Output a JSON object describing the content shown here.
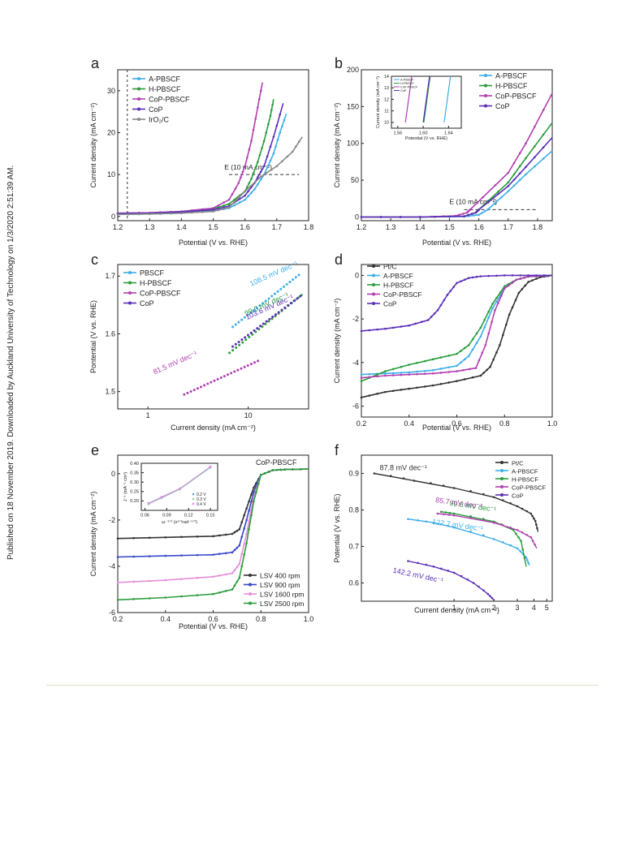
{
  "side_note": "Published on 18 November 2019. Downloaded by Auckland University of Technology on 1/3/2020 2:51:39 AM.",
  "colors": {
    "A-PBSCF": "#3daee9",
    "H-PBSCF": "#2a9c3c",
    "CoP-PBSCF": "#b03fb0",
    "CoP": "#5b2fb8",
    "IrO2/C": "#888888",
    "Pt/C": "#333333"
  },
  "chart_data": [
    {
      "panel": "a",
      "type": "line",
      "xlabel": "Potential (V vs. RHE)",
      "ylabel": "Current density (mA cm⁻²)",
      "xlim": [
        1.2,
        1.8
      ],
      "ylim": [
        -1,
        35
      ],
      "xticks": [
        "1.2",
        "1.3",
        "1.4",
        "1.5",
        "1.6",
        "1.7",
        "1.8"
      ],
      "xtick_values": [
        1.2,
        1.3,
        1.4,
        1.5,
        1.6,
        1.7,
        1.8
      ],
      "yticks": [
        "0",
        "10",
        "20",
        "30"
      ],
      "ytick_values": [
        0,
        10,
        20,
        30
      ],
      "annotation": "E (10 mA cm⁻²)",
      "legend": "top-left",
      "series": [
        {
          "name": "A-PBSCF",
          "x": [
            1.2,
            1.3,
            1.4,
            1.5,
            1.55,
            1.6,
            1.63,
            1.66,
            1.69,
            1.71,
            1.73
          ],
          "y": [
            0.5,
            0.6,
            0.8,
            1.3,
            2,
            4,
            6.5,
            10,
            15,
            20,
            24.5
          ]
        },
        {
          "name": "H-PBSCF",
          "x": [
            1.2,
            1.3,
            1.4,
            1.5,
            1.55,
            1.6,
            1.62,
            1.64,
            1.66,
            1.68,
            1.69
          ],
          "y": [
            0.6,
            0.7,
            1,
            1.8,
            3,
            6,
            9,
            13,
            18,
            24,
            28
          ]
        },
        {
          "name": "CoP-PBSCF",
          "x": [
            1.2,
            1.3,
            1.4,
            1.5,
            1.55,
            1.58,
            1.6,
            1.62,
            1.64,
            1.655
          ],
          "y": [
            0.8,
            0.9,
            1.2,
            2,
            4,
            8,
            12,
            18,
            26,
            32
          ]
        },
        {
          "name": "CoP",
          "x": [
            1.2,
            1.3,
            1.4,
            1.5,
            1.55,
            1.6,
            1.63,
            1.66,
            1.69,
            1.72
          ],
          "y": [
            0.7,
            0.8,
            1.1,
            1.6,
            2.5,
            5,
            8,
            12,
            19,
            27
          ]
        },
        {
          "name": "IrO₂/C",
          "x": [
            1.2,
            1.3,
            1.4,
            1.5,
            1.55,
            1.6,
            1.65,
            1.7,
            1.75,
            1.78
          ],
          "y": [
            0.5,
            0.6,
            0.8,
            1.2,
            2.2,
            6,
            9.5,
            12,
            15.5,
            19
          ]
        }
      ]
    },
    {
      "panel": "b",
      "type": "line",
      "xlabel": "Potential (V vs. RHE)",
      "ylabel": "Current density (mA cm⁻²)",
      "xlim": [
        1.2,
        1.85
      ],
      "ylim": [
        -5,
        200
      ],
      "xticks": [
        "1.2",
        "1.3",
        "1.4",
        "1.5",
        "1.6",
        "1.7",
        "1.8"
      ],
      "xtick_values": [
        1.2,
        1.3,
        1.4,
        1.5,
        1.6,
        1.7,
        1.8
      ],
      "yticks": [
        "0",
        "50",
        "100",
        "150",
        "200"
      ],
      "ytick_values": [
        0,
        50,
        100,
        150,
        200
      ],
      "annotation": "E (10 mA cm⁻²)",
      "legend": "top-right",
      "series": [
        {
          "name": "A-PBSCF",
          "x": [
            1.2,
            1.4,
            1.55,
            1.6,
            1.63,
            1.7,
            1.76,
            1.85
          ],
          "y": [
            0,
            0,
            0.5,
            3,
            10,
            35,
            58,
            90
          ]
        },
        {
          "name": "H-PBSCF",
          "x": [
            1.2,
            1.4,
            1.55,
            1.59,
            1.6,
            1.7,
            1.76,
            1.85
          ],
          "y": [
            0,
            0,
            1,
            6,
            10,
            47,
            80,
            128
          ]
        },
        {
          "name": "CoP-PBSCF",
          "x": [
            1.2,
            1.4,
            1.52,
            1.56,
            1.57,
            1.7,
            1.76,
            1.85
          ],
          "y": [
            0,
            0,
            1.5,
            6,
            10,
            60,
            100,
            168
          ]
        },
        {
          "name": "CoP",
          "x": [
            1.2,
            1.4,
            1.55,
            1.59,
            1.6,
            1.7,
            1.76,
            1.85
          ],
          "y": [
            0,
            0,
            1,
            6,
            10,
            42,
            68,
            108
          ]
        }
      ],
      "inset": {
        "xlabel": "Potential (V vs. RHE)",
        "ylabel": "Current density (mA cm⁻²)",
        "xlim": [
          1.55,
          1.66
        ],
        "ylim": [
          9.5,
          14
        ],
        "xticks": [
          "1.56",
          "1.60",
          "1.64"
        ],
        "xtick_values": [
          1.56,
          1.6,
          1.64
        ],
        "yticks": [
          "10",
          "11",
          "12",
          "13",
          "14"
        ],
        "ytick_values": [
          10,
          11,
          12,
          13,
          14
        ],
        "legend_labels": [
          "A-PBSCF",
          "H-PBSCF",
          "CoP-PBSCF",
          "CoP"
        ],
        "series": [
          {
            "name": "A-PBSCF",
            "x": [
              1.633,
              1.643
            ],
            "y": [
              10,
              14
            ]
          },
          {
            "name": "H-PBSCF",
            "x": [
              1.601,
              1.611
            ],
            "y": [
              10,
              14
            ]
          },
          {
            "name": "CoP-PBSCF",
            "x": [
              1.572,
              1.582
            ],
            "y": [
              10,
              14
            ]
          },
          {
            "name": "CoP",
            "x": [
              1.6,
              1.61
            ],
            "y": [
              10,
              14
            ]
          }
        ]
      }
    },
    {
      "panel": "c",
      "type": "scatter",
      "xlabel": "Current density (mA cm⁻²)",
      "ylabel": "Pontential (V vs. RHE)",
      "xscale": "log",
      "xlim": [
        0.5,
        40
      ],
      "ylim": [
        1.47,
        1.72
      ],
      "xticks": [
        "1",
        "10"
      ],
      "xtick_values": [
        1,
        10
      ],
      "yticks": [
        "1.5",
        "1.6",
        "1.7"
      ],
      "ytick_values": [
        1.5,
        1.6,
        1.7
      ],
      "legend": "top-left",
      "series": [
        {
          "name": "PBSCF",
          "x_start": 7,
          "x_end": 32,
          "y_start": 1.612,
          "y_end": 1.702,
          "slope_label": "108.5 mV dec⁻¹"
        },
        {
          "name": "H-PBSCF",
          "x_start": 6.5,
          "x_end": 34,
          "y_start": 1.567,
          "y_end": 1.667,
          "slope_label": "99.0 mV dec⁻¹"
        },
        {
          "name": "CoP-PBSCF",
          "x_start": 2.3,
          "x_end": 12.5,
          "y_start": 1.495,
          "y_end": 1.553,
          "slope_label": "81.5 mV dec⁻¹"
        },
        {
          "name": "CoP",
          "x_start": 7,
          "x_end": 33,
          "y_start": 1.578,
          "y_end": 1.665,
          "slope_label": "103.6 mV dec⁻¹"
        }
      ]
    },
    {
      "panel": "d",
      "type": "line",
      "xlabel": "Potential (V vs. RHE)",
      "ylabel": "Current density (mA cm⁻²)",
      "xlim": [
        0.2,
        1.0
      ],
      "ylim": [
        -6.5,
        0.5
      ],
      "xticks": [
        "0.2",
        "0.4",
        "0.6",
        "0.8",
        "1.0"
      ],
      "xtick_values": [
        0.2,
        0.4,
        0.6,
        0.8,
        1.0
      ],
      "yticks": [
        "0",
        "-2",
        "-4",
        "-6"
      ],
      "ytick_values": [
        0,
        -2,
        -4,
        -6
      ],
      "legend": "top-left",
      "series": [
        {
          "name": "Pt/C",
          "x": [
            0.2,
            0.3,
            0.4,
            0.5,
            0.6,
            0.7,
            0.74,
            0.78,
            0.82,
            0.86,
            0.9,
            0.95,
            1.0
          ],
          "y": [
            -5.6,
            -5.35,
            -5.2,
            -5.05,
            -4.85,
            -4.6,
            -4.2,
            -3.2,
            -1.8,
            -0.8,
            -0.3,
            -0.08,
            0
          ]
        },
        {
          "name": "A-PBSCF",
          "x": [
            0.2,
            0.3,
            0.4,
            0.5,
            0.6,
            0.65,
            0.7,
            0.75,
            0.8,
            0.85,
            0.9,
            1.0
          ],
          "y": [
            -4.55,
            -4.5,
            -4.45,
            -4.35,
            -4.15,
            -3.7,
            -2.8,
            -1.5,
            -0.6,
            -0.2,
            -0.06,
            0
          ]
        },
        {
          "name": "H-PBSCF",
          "x": [
            0.2,
            0.3,
            0.4,
            0.5,
            0.6,
            0.65,
            0.7,
            0.75,
            0.8,
            0.85,
            0.9,
            1.0
          ],
          "y": [
            -4.85,
            -4.4,
            -4.1,
            -3.85,
            -3.6,
            -3.2,
            -2.4,
            -1.3,
            -0.5,
            -0.2,
            -0.05,
            0
          ]
        },
        {
          "name": "CoP-PBSCF",
          "x": [
            0.2,
            0.3,
            0.4,
            0.5,
            0.6,
            0.68,
            0.72,
            0.76,
            0.8,
            0.85,
            0.9,
            1.0
          ],
          "y": [
            -4.7,
            -4.6,
            -4.55,
            -4.5,
            -4.4,
            -4.25,
            -3.2,
            -1.6,
            -0.6,
            -0.2,
            -0.05,
            0
          ]
        },
        {
          "name": "CoP",
          "x": [
            0.2,
            0.3,
            0.4,
            0.48,
            0.52,
            0.56,
            0.6,
            0.65,
            0.7,
            0.8,
            0.9,
            1.0
          ],
          "y": [
            -2.55,
            -2.45,
            -2.3,
            -2.05,
            -1.6,
            -0.9,
            -0.35,
            -0.12,
            -0.04,
            0,
            0,
            0
          ]
        }
      ]
    },
    {
      "panel": "e",
      "type": "line",
      "title": "CoP-PBSCF",
      "xlabel": "Potential (V vs. RHE)",
      "ylabel": "Current density (mA cm⁻²)",
      "xlim": [
        0.2,
        1.0
      ],
      "ylim": [
        -6,
        0.8
      ],
      "xticks": [
        "0.2",
        "0.4",
        "0.6",
        "0.8",
        "1.0"
      ],
      "xtick_values": [
        0.2,
        0.4,
        0.6,
        0.8,
        1.0
      ],
      "yticks": [
        "0",
        "-2",
        "-4",
        "-6"
      ],
      "ytick_values": [
        0,
        -2,
        -4,
        -6
      ],
      "legend": "bottom-right",
      "series": [
        {
          "name": "LSV 400 rpm",
          "x": [
            0.2,
            0.4,
            0.6,
            0.68,
            0.71,
            0.74,
            0.77,
            0.8,
            0.85,
            0.9,
            1.0
          ],
          "y": [
            -2.8,
            -2.75,
            -2.7,
            -2.6,
            -2.4,
            -1.5,
            -0.6,
            -0.05,
            0.15,
            0.18,
            0.2
          ]
        },
        {
          "name": "LSV 900 rpm",
          "x": [
            0.2,
            0.4,
            0.6,
            0.68,
            0.71,
            0.74,
            0.77,
            0.8,
            0.85,
            0.9,
            1.0
          ],
          "y": [
            -3.6,
            -3.55,
            -3.5,
            -3.4,
            -3.1,
            -2.0,
            -0.8,
            -0.05,
            0.15,
            0.18,
            0.2
          ]
        },
        {
          "name": "LSV 1600 rpm",
          "x": [
            0.2,
            0.4,
            0.6,
            0.68,
            0.71,
            0.74,
            0.77,
            0.8,
            0.85,
            0.9,
            1.0
          ],
          "y": [
            -4.7,
            -4.6,
            -4.45,
            -4.3,
            -3.9,
            -2.6,
            -1.0,
            -0.05,
            0.15,
            0.18,
            0.2
          ]
        },
        {
          "name": "LSV 2500 rpm",
          "x": [
            0.2,
            0.4,
            0.6,
            0.68,
            0.71,
            0.74,
            0.77,
            0.8,
            0.85,
            0.9,
            1.0
          ],
          "y": [
            -5.45,
            -5.35,
            -5.2,
            -5.0,
            -4.5,
            -3.0,
            -1.2,
            -0.05,
            0.15,
            0.18,
            0.2
          ]
        }
      ],
      "inset": {
        "xlabel": "ω⁻¹ᐟ² (s¹ᐟ²rad⁻¹ᐟ²)",
        "ylabel": "J⁻¹ (mA⁻¹ cm²)",
        "xlim": [
          0.055,
          0.16
        ],
        "ylim": [
          0.15,
          0.4
        ],
        "xticks": [
          "0.06",
          "0.09",
          "0.12",
          "0.15"
        ],
        "xtick_values": [
          0.06,
          0.09,
          0.12,
          0.15
        ],
        "yticks": [
          "0.20",
          "0.25",
          "0.30",
          "0.35",
          "0.40"
        ],
        "ytick_values": [
          0.2,
          0.25,
          0.3,
          0.35,
          0.4
        ],
        "legend_labels": [
          "0.2 V",
          "0.3 V",
          "0.4 V"
        ],
        "series": [
          {
            "name": "0.2 V",
            "x": [
              0.065,
              0.083,
              0.108,
              0.15
            ],
            "y": [
              0.184,
              0.217,
              0.262,
              0.378
            ]
          },
          {
            "name": "0.3 V",
            "x": [
              0.065,
              0.083,
              0.108,
              0.15
            ],
            "y": [
              0.186,
              0.219,
              0.264,
              0.38
            ]
          },
          {
            "name": "0.4 V",
            "x": [
              0.065,
              0.083,
              0.108,
              0.15
            ],
            "y": [
              0.188,
              0.221,
              0.266,
              0.382
            ]
          }
        ]
      }
    },
    {
      "panel": "f",
      "type": "scatter",
      "xlabel": "Current density (mA cm⁻²)",
      "ylabel": "Potential (V vs. RHE)",
      "xscale": "log",
      "xlim": [
        0.2,
        5.5
      ],
      "ylim": [
        0.55,
        0.95
      ],
      "xticks": [
        "1",
        "2",
        "3",
        "4",
        "5"
      ],
      "xtick_values": [
        1,
        2,
        3,
        4,
        5
      ],
      "yticks": [
        "0.6",
        "0.7",
        "0.8",
        "0.9"
      ],
      "ytick_values": [
        0.6,
        0.7,
        0.8,
        0.9
      ],
      "legend": "top-right",
      "series": [
        {
          "name": "Pt/C",
          "x": [
            0.25,
            0.5,
            1,
            2,
            3,
            3.8,
            4.1,
            4.3
          ],
          "y": [
            0.9,
            0.88,
            0.86,
            0.835,
            0.81,
            0.79,
            0.77,
            0.74
          ],
          "slope_label": "87.8 mV dec⁻¹"
        },
        {
          "name": "A-PBSCF",
          "x": [
            0.45,
            0.7,
            1,
            2,
            3,
            3.5,
            3.7
          ],
          "y": [
            0.775,
            0.765,
            0.752,
            0.72,
            0.695,
            0.67,
            0.648
          ],
          "slope_label": "122.7 mV dec⁻¹"
        },
        {
          "name": "H-PBSCF",
          "x": [
            0.8,
            1,
            2,
            2.8,
            3.2,
            3.5
          ],
          "y": [
            0.795,
            0.79,
            0.768,
            0.745,
            0.715,
            0.645
          ],
          "slope_label": "99.8 mV dec⁻¹"
        },
        {
          "name": "CoP-PBSCF",
          "x": [
            0.75,
            1,
            2,
            3,
            3.8,
            4.2
          ],
          "y": [
            0.79,
            0.785,
            0.765,
            0.745,
            0.725,
            0.695
          ],
          "slope_label": "85.7 mV dec⁻¹"
        },
        {
          "name": "CoP",
          "x": [
            0.45,
            0.7,
            1,
            1.4,
            1.8,
            2.0
          ],
          "y": [
            0.66,
            0.645,
            0.628,
            0.6,
            0.57,
            0.553
          ],
          "slope_label": "142.2 mV dec⁻¹"
        }
      ]
    }
  ]
}
